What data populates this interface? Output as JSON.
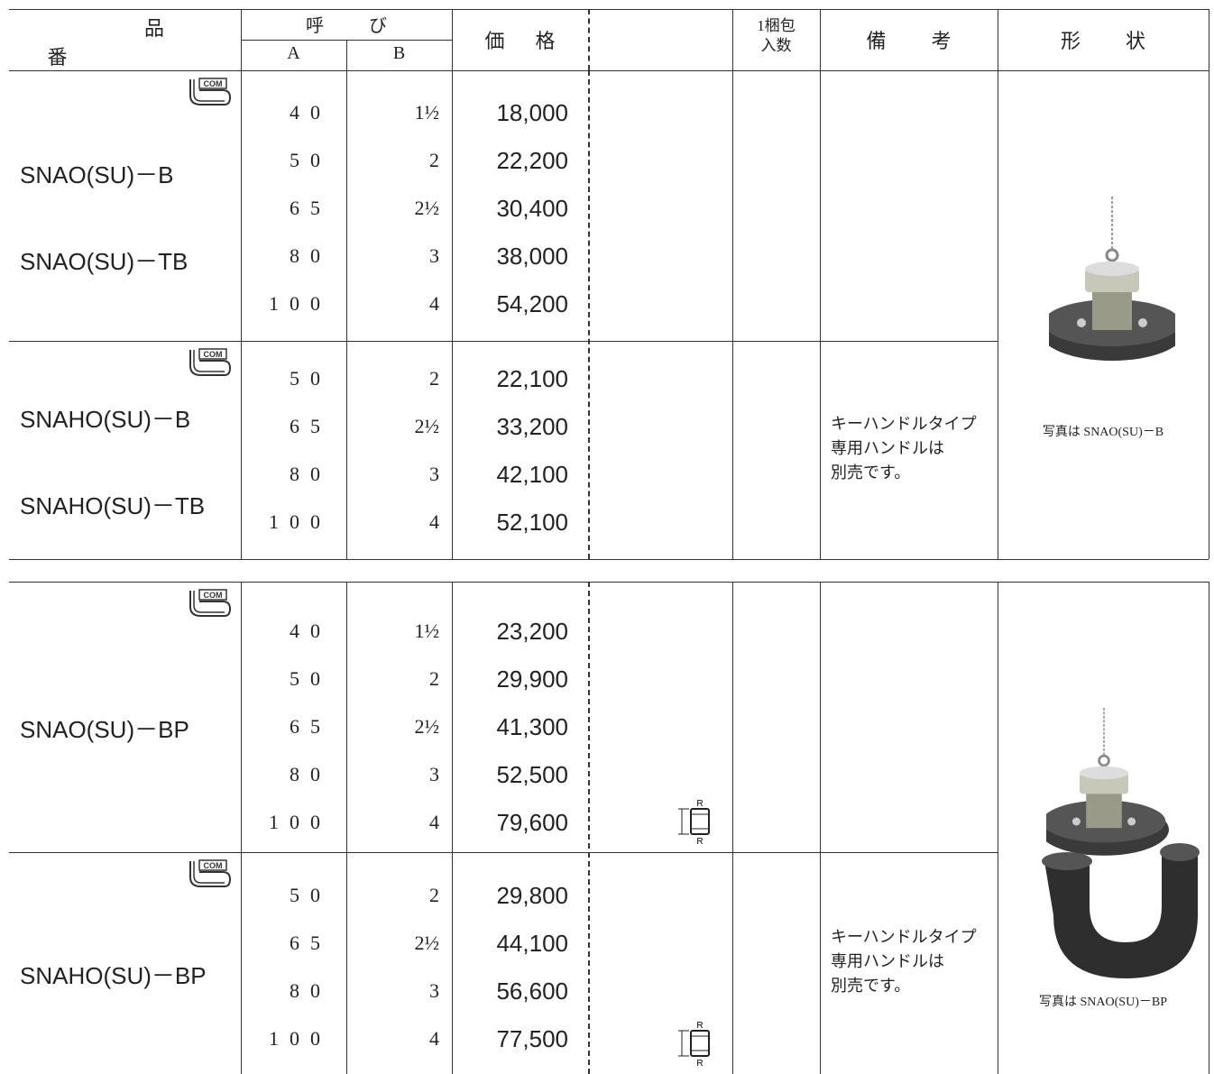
{
  "header": {
    "part_no": "品番",
    "nominal": "呼び",
    "a": "A",
    "b": "B",
    "price": "価格",
    "pack_qty": "1梱包\n入数",
    "remarks": "備考",
    "shape": "形状"
  },
  "tables": [
    {
      "groups": [
        {
          "models": [
            "SNAO(SU)－B",
            "SNAO(SU)－TB"
          ],
          "rows": [
            [
              "40",
              "1½",
              "18,000"
            ],
            [
              "50",
              "2",
              "22,200"
            ],
            [
              "65",
              "2½",
              "30,400"
            ],
            [
              "80",
              "3",
              "38,000"
            ],
            [
              "100",
              "4",
              "54,200"
            ]
          ]
        },
        {
          "models": [
            "SNAHO(SU)－B",
            "SNAHO(SU)－TB"
          ],
          "rows": [
            [
              "50",
              "2",
              "22,100"
            ],
            [
              "65",
              "2½",
              "33,200"
            ],
            [
              "80",
              "3",
              "42,100"
            ],
            [
              "100",
              "4",
              "52,100"
            ]
          ],
          "remarks": "キーハンドルタイプ\n専用ハンドルは\n別売です。"
        }
      ],
      "photo_caption": "写真は SNAO(SU)－B"
    },
    {
      "groups": [
        {
          "models": [
            "SNAO(SU)－BP"
          ],
          "rows": [
            [
              "40",
              "1½",
              "23,200"
            ],
            [
              "50",
              "2",
              "29,900"
            ],
            [
              "65",
              "2½",
              "41,300"
            ],
            [
              "80",
              "3",
              "52,500"
            ],
            [
              "100",
              "4",
              "79,600"
            ]
          ]
        },
        {
          "models": [
            "SNAHO(SU)－BP"
          ],
          "rows": [
            [
              "50",
              "2",
              "29,800"
            ],
            [
              "65",
              "2½",
              "44,100"
            ],
            [
              "80",
              "3",
              "56,600"
            ],
            [
              "100",
              "4",
              "77,500"
            ]
          ],
          "remarks": "キーハンドルタイプ\n専用ハンドルは\n別売です。"
        }
      ],
      "photo_caption": "写真は SNAO(SU)－BP"
    }
  ]
}
